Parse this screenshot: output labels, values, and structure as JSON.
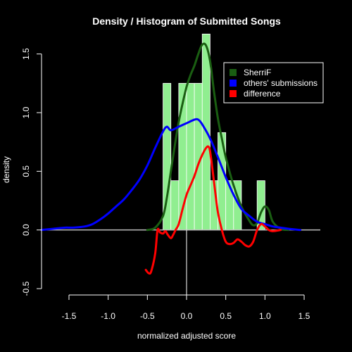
{
  "chart_data": {
    "type": "bar",
    "title": "Density / Histogram of Submitted Songs",
    "xlabel": "normalized adjusted score",
    "ylabel": "density",
    "xlim": [
      -1.85,
      1.85
    ],
    "ylim": [
      -0.5,
      1.6
    ],
    "x_ticks": [
      -1.5,
      -1.0,
      -0.5,
      0.0,
      0.5,
      1.0,
      1.5
    ],
    "x_tick_labels": [
      "-1.5",
      "-1.0",
      "-0.5",
      "0.0",
      "0.5",
      "1.0",
      "1.5"
    ],
    "y_ticks": [
      -0.5,
      0.0,
      0.5,
      1.0,
      1.5
    ],
    "y_tick_labels": [
      "-0.5",
      "0.0",
      "0.5",
      "1.0",
      "1.5"
    ],
    "grid": false,
    "legend_position": "top-right",
    "histogram": {
      "color": "#90ee90",
      "bin_width": 0.1,
      "bins": [
        {
          "x0": -0.3,
          "x1": -0.2,
          "density": 1.25
        },
        {
          "x0": -0.2,
          "x1": -0.1,
          "density": 0.42
        },
        {
          "x0": -0.1,
          "x1": 0.0,
          "density": 1.25
        },
        {
          "x0": 0.0,
          "x1": 0.1,
          "density": 1.25
        },
        {
          "x0": 0.1,
          "x1": 0.2,
          "density": 1.25
        },
        {
          "x0": 0.2,
          "x1": 0.3,
          "density": 1.67
        },
        {
          "x0": 0.3,
          "x1": 0.4,
          "density": 0.42
        },
        {
          "x0": 0.4,
          "x1": 0.5,
          "density": 0.83
        },
        {
          "x0": 0.5,
          "x1": 0.6,
          "density": 0.42
        },
        {
          "x0": 0.6,
          "x1": 0.7,
          "density": 0.42
        },
        {
          "x0": 0.9,
          "x1": 1.0,
          "density": 0.42
        }
      ]
    },
    "series": [
      {
        "name": "SherriF",
        "color": "#1a5e12",
        "x": [
          -0.5,
          -0.4,
          -0.3,
          -0.25,
          -0.2,
          -0.15,
          -0.1,
          -0.05,
          0.0,
          0.05,
          0.1,
          0.15,
          0.2,
          0.25,
          0.3,
          0.35,
          0.4,
          0.45,
          0.5,
          0.6,
          0.7,
          0.8,
          0.85,
          0.9,
          0.95,
          1.0,
          1.05,
          1.1,
          1.2,
          1.3
        ],
        "y": [
          0.0,
          0.02,
          0.12,
          0.28,
          0.5,
          0.72,
          0.92,
          1.08,
          1.22,
          1.32,
          1.4,
          1.5,
          1.58,
          1.57,
          1.44,
          1.18,
          0.95,
          0.78,
          0.62,
          0.38,
          0.2,
          0.08,
          0.04,
          0.06,
          0.15,
          0.2,
          0.17,
          0.07,
          0.01,
          0.0
        ]
      },
      {
        "name": "others' submissions",
        "color": "#0000ff",
        "x": [
          -1.85,
          -1.7,
          -1.55,
          -1.45,
          -1.3,
          -1.2,
          -1.1,
          -1.0,
          -0.9,
          -0.8,
          -0.7,
          -0.6,
          -0.5,
          -0.4,
          -0.3,
          -0.25,
          -0.2,
          -0.1,
          0.0,
          0.1,
          0.15,
          0.2,
          0.3,
          0.4,
          0.5,
          0.6,
          0.7,
          0.8,
          0.9,
          1.0,
          1.1,
          1.2,
          1.3,
          1.45
        ],
        "y": [
          0.0,
          0.01,
          0.02,
          0.02,
          0.03,
          0.05,
          0.09,
          0.14,
          0.2,
          0.26,
          0.34,
          0.43,
          0.55,
          0.7,
          0.84,
          0.88,
          0.85,
          0.88,
          0.91,
          0.94,
          0.94,
          0.9,
          0.78,
          0.62,
          0.45,
          0.3,
          0.18,
          0.12,
          0.07,
          0.05,
          0.03,
          0.02,
          0.01,
          0.0
        ]
      },
      {
        "name": "difference",
        "color": "#ff0000",
        "x": [
          -0.52,
          -0.48,
          -0.45,
          -0.4,
          -0.37,
          -0.34,
          -0.3,
          -0.27,
          -0.24,
          -0.2,
          -0.17,
          -0.14,
          -0.1,
          -0.05,
          0.0,
          0.05,
          0.1,
          0.15,
          0.2,
          0.25,
          0.28,
          0.3,
          0.33,
          0.37,
          0.4,
          0.45,
          0.5,
          0.55,
          0.6,
          0.65,
          0.7,
          0.75,
          0.8,
          0.85,
          0.9,
          0.95,
          1.0,
          1.05,
          1.1,
          1.2
        ],
        "y": [
          -0.34,
          -0.37,
          -0.35,
          -0.2,
          0.0,
          -0.02,
          -0.03,
          -0.01,
          -0.04,
          -0.07,
          -0.04,
          0.0,
          0.05,
          0.18,
          0.3,
          0.38,
          0.46,
          0.56,
          0.64,
          0.7,
          0.71,
          0.67,
          0.52,
          0.3,
          0.15,
          0.0,
          -0.1,
          -0.12,
          -0.11,
          -0.08,
          -0.1,
          -0.13,
          -0.14,
          -0.1,
          0.0,
          0.05,
          0.03,
          0.0,
          -0.01,
          0.0
        ]
      }
    ],
    "legend": [
      {
        "label": "SherriF",
        "color": "#1a5e12"
      },
      {
        "label": "others' submissions",
        "color": "#0000ff"
      },
      {
        "label": "difference",
        "color": "#ff0000"
      }
    ]
  }
}
